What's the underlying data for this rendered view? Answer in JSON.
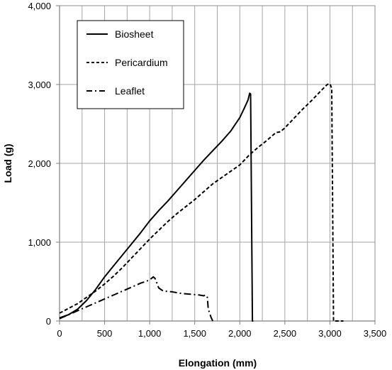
{
  "chart_data": {
    "type": "line",
    "xlabel": "Elongation (mm)",
    "ylabel": "Load (g)",
    "xlim": [
      0,
      3500
    ],
    "ylim": [
      0,
      4000
    ],
    "x_ticks": [
      0,
      500,
      1000,
      1500,
      2000,
      2500,
      3000,
      3500
    ],
    "y_ticks": [
      0,
      1000,
      2000,
      3000,
      4000
    ],
    "x_tick_labels": [
      "0",
      "500",
      "1,000",
      "1,500",
      "2,000",
      "2,500",
      "3,000",
      "3,500"
    ],
    "y_tick_labels": [
      "0",
      "1,000",
      "2,000",
      "3,000",
      "4,000"
    ],
    "x_minor_step": 250,
    "grid": true,
    "legend_position": "top-left",
    "series": [
      {
        "name": "Biosheet",
        "dash": "solid",
        "points": [
          [
            0,
            40
          ],
          [
            100,
            80
          ],
          [
            200,
            150
          ],
          [
            300,
            260
          ],
          [
            400,
            400
          ],
          [
            500,
            560
          ],
          [
            600,
            700
          ],
          [
            700,
            840
          ],
          [
            800,
            980
          ],
          [
            900,
            1120
          ],
          [
            1000,
            1270
          ],
          [
            1100,
            1400
          ],
          [
            1200,
            1520
          ],
          [
            1300,
            1650
          ],
          [
            1400,
            1780
          ],
          [
            1500,
            1910
          ],
          [
            1600,
            2040
          ],
          [
            1700,
            2160
          ],
          [
            1800,
            2280
          ],
          [
            1900,
            2410
          ],
          [
            2000,
            2580
          ],
          [
            2050,
            2700
          ],
          [
            2090,
            2800
          ],
          [
            2110,
            2890
          ],
          [
            2120,
            2880
          ],
          [
            2140,
            0
          ],
          [
            2150,
            0
          ]
        ]
      },
      {
        "name": "Pericardium",
        "dash": "dashed",
        "points": [
          [
            0,
            100
          ],
          [
            100,
            160
          ],
          [
            200,
            220
          ],
          [
            300,
            300
          ],
          [
            400,
            380
          ],
          [
            500,
            470
          ],
          [
            600,
            570
          ],
          [
            700,
            680
          ],
          [
            800,
            800
          ],
          [
            900,
            920
          ],
          [
            1000,
            1040
          ],
          [
            1100,
            1150
          ],
          [
            1200,
            1260
          ],
          [
            1300,
            1360
          ],
          [
            1400,
            1450
          ],
          [
            1500,
            1540
          ],
          [
            1600,
            1640
          ],
          [
            1700,
            1740
          ],
          [
            1800,
            1820
          ],
          [
            1900,
            1900
          ],
          [
            2000,
            1980
          ],
          [
            2100,
            2100
          ],
          [
            2200,
            2200
          ],
          [
            2300,
            2290
          ],
          [
            2400,
            2390
          ],
          [
            2450,
            2400
          ],
          [
            2500,
            2450
          ],
          [
            2600,
            2570
          ],
          [
            2700,
            2690
          ],
          [
            2800,
            2800
          ],
          [
            2900,
            2920
          ],
          [
            2970,
            3000
          ],
          [
            3000,
            3010
          ],
          [
            3020,
            2950
          ],
          [
            3040,
            0
          ],
          [
            3150,
            0
          ]
        ]
      },
      {
        "name": "Leaflet",
        "dash": "dashdot",
        "points": [
          [
            0,
            30
          ],
          [
            100,
            80
          ],
          [
            200,
            130
          ],
          [
            300,
            180
          ],
          [
            400,
            230
          ],
          [
            500,
            280
          ],
          [
            600,
            330
          ],
          [
            700,
            380
          ],
          [
            800,
            430
          ],
          [
            900,
            480
          ],
          [
            1000,
            520
          ],
          [
            1040,
            560
          ],
          [
            1060,
            540
          ],
          [
            1100,
            420
          ],
          [
            1150,
            380
          ],
          [
            1250,
            370
          ],
          [
            1350,
            350
          ],
          [
            1450,
            340
          ],
          [
            1550,
            330
          ],
          [
            1600,
            320
          ],
          [
            1620,
            330
          ],
          [
            1640,
            300
          ],
          [
            1650,
            150
          ],
          [
            1680,
            50
          ],
          [
            1700,
            0
          ]
        ]
      }
    ]
  }
}
